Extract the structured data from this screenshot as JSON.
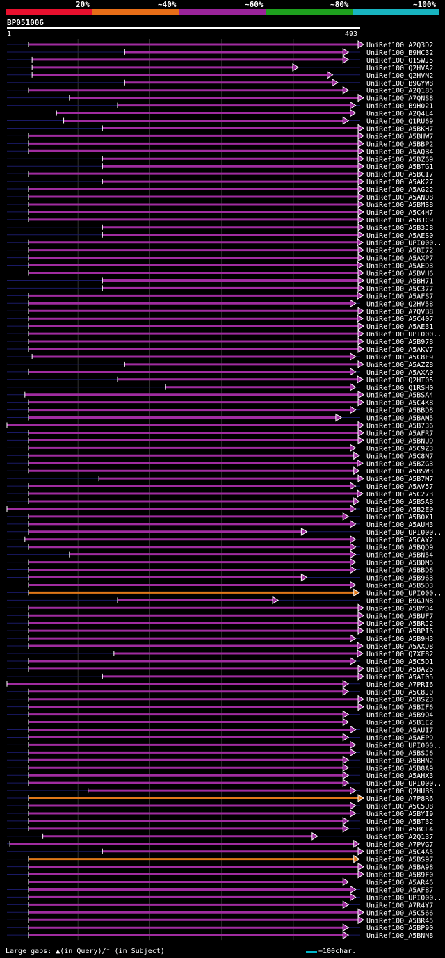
{
  "legend": {
    "labels": [
      "20%",
      "~40%",
      "~60%",
      "~80%",
      "~100%"
    ],
    "colors": [
      "#e8102e",
      "#e86e18",
      "#9b249b",
      "#1ea01e",
      "#18b4c0"
    ]
  },
  "query": {
    "name": "BP051006",
    "start": "1",
    "end": "493"
  },
  "footer": {
    "gaps_text": "Large gaps: ▲(in Query)/⁻ (in Subject)",
    "scale_text": "=100char."
  },
  "chart_data": {
    "type": "alignment",
    "query_length": 493,
    "hits": [
      {
        "name": "UniRef100_A2Q3D2",
        "start": 31,
        "end": 493,
        "color": "purple"
      },
      {
        "name": "UniRef100_B9HC32",
        "start": 165,
        "end": 470,
        "color": "purple"
      },
      {
        "name": "UniRef100_Q1SWJ5",
        "start": 36,
        "end": 470,
        "color": "purple"
      },
      {
        "name": "UniRef100_Q2HVA2",
        "start": 36,
        "end": 400,
        "color": "purple"
      },
      {
        "name": "UniRef100_Q2HVN2",
        "start": 36,
        "end": 448,
        "color": "purple"
      },
      {
        "name": "UniRef100_B9GYW8",
        "start": 165,
        "end": 455,
        "color": "purple"
      },
      {
        "name": "UniRef100_A2Q185",
        "start": 31,
        "end": 470,
        "color": "purple"
      },
      {
        "name": "UniRef100_A7QNS8",
        "start": 88,
        "end": 505,
        "color": "purple"
      },
      {
        "name": "UniRef100_B9H021",
        "start": 155,
        "end": 480,
        "color": "purple"
      },
      {
        "name": "UniRef100_A2Q4L4",
        "start": 70,
        "end": 480,
        "color": "purple"
      },
      {
        "name": "UniRef100_Q1RU69",
        "start": 80,
        "end": 470,
        "color": "purple"
      },
      {
        "name": "UniRef100_A5BKH7",
        "start": 134,
        "end": 503,
        "color": "purple"
      },
      {
        "name": "UniRef100_A5BHW7",
        "start": 31,
        "end": 503,
        "color": "purple"
      },
      {
        "name": "UniRef100_A5BBP2",
        "start": 31,
        "end": 503,
        "color": "purple"
      },
      {
        "name": "UniRef100_A5AQB4",
        "start": 31,
        "end": 503,
        "color": "purple"
      },
      {
        "name": "UniRef100_A5BZ69",
        "start": 134,
        "end": 503,
        "color": "purple"
      },
      {
        "name": "UniRef100_A5BTG1",
        "start": 134,
        "end": 503,
        "color": "purple"
      },
      {
        "name": "UniRef100_A5BCI7",
        "start": 31,
        "end": 503,
        "color": "purple"
      },
      {
        "name": "UniRef100_A5AK27",
        "start": 134,
        "end": 503,
        "color": "purple"
      },
      {
        "name": "UniRef100_A5AG22",
        "start": 31,
        "end": 503,
        "color": "purple"
      },
      {
        "name": "UniRef100_A5ANQ8",
        "start": 31,
        "end": 503,
        "color": "purple"
      },
      {
        "name": "UniRef100_A5BMS8",
        "start": 31,
        "end": 503,
        "color": "purple"
      },
      {
        "name": "UniRef100_A5C4H7",
        "start": 31,
        "end": 503,
        "color": "purple"
      },
      {
        "name": "UniRef100_A5BJC9",
        "start": 31,
        "end": 503,
        "color": "purple"
      },
      {
        "name": "UniRef100_A5B3J8",
        "start": 134,
        "end": 503,
        "color": "purple"
      },
      {
        "name": "UniRef100_A5AES0",
        "start": 134,
        "end": 503,
        "color": "purple"
      },
      {
        "name": "UniRef100_UPI000..",
        "start": 31,
        "end": 490,
        "color": "purple"
      },
      {
        "name": "UniRef100_A5BI72",
        "start": 31,
        "end": 503,
        "color": "purple"
      },
      {
        "name": "UniRef100_A5AXP7",
        "start": 31,
        "end": 503,
        "color": "purple"
      },
      {
        "name": "UniRef100_A5AED3",
        "start": 31,
        "end": 490,
        "color": "purple"
      },
      {
        "name": "UniRef100_A5BVH6",
        "start": 31,
        "end": 495,
        "color": "purple"
      },
      {
        "name": "UniRef100_A5BH71",
        "start": 134,
        "end": 503,
        "color": "purple"
      },
      {
        "name": "UniRef100_A5C377",
        "start": 134,
        "end": 503,
        "color": "purple"
      },
      {
        "name": "UniRef100_A5AFS7",
        "start": 31,
        "end": 490,
        "color": "purple"
      },
      {
        "name": "UniRef100_Q2HV58",
        "start": 31,
        "end": 480,
        "color": "purple"
      },
      {
        "name": "UniRef100_A7QVB8",
        "start": 31,
        "end": 503,
        "color": "purple"
      },
      {
        "name": "UniRef100_A5C407",
        "start": 31,
        "end": 490,
        "color": "purple"
      },
      {
        "name": "UniRef100_A5AE31",
        "start": 31,
        "end": 503,
        "color": "purple"
      },
      {
        "name": "UniRef100_UPI000..",
        "start": 31,
        "end": 503,
        "color": "purple"
      },
      {
        "name": "UniRef100_A5B978",
        "start": 31,
        "end": 495,
        "color": "purple"
      },
      {
        "name": "UniRef100_A5AKV7",
        "start": 31,
        "end": 495,
        "color": "purple"
      },
      {
        "name": "UniRef100_A5C8F9",
        "start": 36,
        "end": 480,
        "color": "purple"
      },
      {
        "name": "UniRef100_A5AZZ8",
        "start": 165,
        "end": 503,
        "color": "purple"
      },
      {
        "name": "UniRef100_A5AXA0",
        "start": 31,
        "end": 480,
        "color": "purple"
      },
      {
        "name": "UniRef100_Q2HT05",
        "start": 155,
        "end": 490,
        "color": "purple"
      },
      {
        "name": "UniRef100_Q1RSH0",
        "start": 222,
        "end": 480,
        "color": "purple"
      },
      {
        "name": "UniRef100_A5BSA4",
        "start": 26,
        "end": 495,
        "color": "purple"
      },
      {
        "name": "UniRef100_A5C4K8",
        "start": 31,
        "end": 503,
        "color": "purple"
      },
      {
        "name": "UniRef100_A5BBD8",
        "start": 31,
        "end": 480,
        "color": "purple"
      },
      {
        "name": "UniRef100_A5BAM5",
        "start": 31,
        "end": 460,
        "color": "purple"
      },
      {
        "name": "UniRef100_A5B736",
        "start": 1,
        "end": 495,
        "color": "purple"
      },
      {
        "name": "UniRef100_A5AFR7",
        "start": 31,
        "end": 495,
        "color": "purple"
      },
      {
        "name": "UniRef100_A5BNU9",
        "start": 31,
        "end": 495,
        "color": "purple"
      },
      {
        "name": "UniRef100_A5C9Z3",
        "start": 31,
        "end": 480,
        "color": "purple"
      },
      {
        "name": "UniRef100_A5C8N7",
        "start": 31,
        "end": 485,
        "color": "purple"
      },
      {
        "name": "UniRef100_A5BZG3",
        "start": 31,
        "end": 490,
        "color": "purple"
      },
      {
        "name": "UniRef100_A5BSW3",
        "start": 31,
        "end": 485,
        "color": "purple"
      },
      {
        "name": "UniRef100_A5B7M7",
        "start": 129,
        "end": 503,
        "color": "purple"
      },
      {
        "name": "UniRef100_A5AV57",
        "start": 31,
        "end": 480,
        "color": "purple"
      },
      {
        "name": "UniRef100_A5C273",
        "start": 31,
        "end": 490,
        "color": "purple"
      },
      {
        "name": "UniRef100_A5B5A8",
        "start": 31,
        "end": 485,
        "color": "purple"
      },
      {
        "name": "UniRef100_A5B2E0",
        "start": 1,
        "end": 480,
        "color": "purple"
      },
      {
        "name": "UniRef100_A5B0X1",
        "start": 31,
        "end": 470,
        "color": "purple"
      },
      {
        "name": "UniRef100_A5AUH3",
        "start": 31,
        "end": 480,
        "color": "purple"
      },
      {
        "name": "UniRef100_UPI000..",
        "start": 31,
        "end": 412,
        "color": "purple"
      },
      {
        "name": "UniRef100_A5CAY2",
        "start": 26,
        "end": 480,
        "color": "purple"
      },
      {
        "name": "UniRef100_A5BQD9",
        "start": 31,
        "end": 480,
        "color": "purple"
      },
      {
        "name": "UniRef100_A5BN54",
        "start": 88,
        "end": 480,
        "color": "purple"
      },
      {
        "name": "UniRef100_A5BDM5",
        "start": 31,
        "end": 480,
        "color": "purple"
      },
      {
        "name": "UniRef100_A5BBD6",
        "start": 31,
        "end": 480,
        "color": "purple"
      },
      {
        "name": "UniRef100_A5B963",
        "start": 31,
        "end": 412,
        "color": "purple"
      },
      {
        "name": "UniRef100_A5B5D3",
        "start": 31,
        "end": 480,
        "color": "purple"
      },
      {
        "name": "UniRef100_UPI000..",
        "start": 31,
        "end": 485,
        "color": "orange"
      },
      {
        "name": "UniRef100_B9GJN8",
        "start": 155,
        "end": 372,
        "color": "purple"
      },
      {
        "name": "UniRef100_A5BYD4",
        "start": 31,
        "end": 495,
        "color": "purple"
      },
      {
        "name": "UniRef100_A5BUF7",
        "start": 31,
        "end": 495,
        "color": "purple"
      },
      {
        "name": "UniRef100_A5BRJ2",
        "start": 31,
        "end": 503,
        "color": "purple"
      },
      {
        "name": "UniRef100_A5BPI6",
        "start": 31,
        "end": 503,
        "color": "purple"
      },
      {
        "name": "UniRef100_A5B9H3",
        "start": 31,
        "end": 480,
        "color": "purple"
      },
      {
        "name": "UniRef100_A5AXD8",
        "start": 31,
        "end": 490,
        "color": "purple"
      },
      {
        "name": "UniRef100_Q7XF82",
        "start": 150,
        "end": 490,
        "color": "purple"
      },
      {
        "name": "UniRef100_A5C5D1",
        "start": 31,
        "end": 480,
        "color": "purple"
      },
      {
        "name": "UniRef100_A5BA26",
        "start": 31,
        "end": 495,
        "color": "purple"
      },
      {
        "name": "UniRef100_A5AI05",
        "start": 134,
        "end": 503,
        "color": "purple"
      },
      {
        "name": "UniRef100_A7PRI6",
        "start": 1,
        "end": 470,
        "color": "purple"
      },
      {
        "name": "UniRef100_A5C8J0",
        "start": 31,
        "end": 470,
        "color": "purple"
      },
      {
        "name": "UniRef100_A5BSZ3",
        "start": 31,
        "end": 503,
        "color": "purple"
      },
      {
        "name": "UniRef100_A5BIF6",
        "start": 31,
        "end": 495,
        "color": "purple"
      },
      {
        "name": "UniRef100_A5B9Q4",
        "start": 31,
        "end": 470,
        "color": "purple"
      },
      {
        "name": "UniRef100_A5B1E2",
        "start": 31,
        "end": 470,
        "color": "purple"
      },
      {
        "name": "UniRef100_A5AUI7",
        "start": 31,
        "end": 480,
        "color": "purple"
      },
      {
        "name": "UniRef100_A5AEP9",
        "start": 31,
        "end": 470,
        "color": "purple"
      },
      {
        "name": "UniRef100_UPI000..",
        "start": 31,
        "end": 480,
        "color": "purple"
      },
      {
        "name": "UniRef100_A5BSJ6",
        "start": 31,
        "end": 480,
        "color": "purple"
      },
      {
        "name": "UniRef100_A5BHN2",
        "start": 31,
        "end": 470,
        "color": "purple"
      },
      {
        "name": "UniRef100_A5B8A9",
        "start": 31,
        "end": 470,
        "color": "purple"
      },
      {
        "name": "UniRef100_A5AHX3",
        "start": 31,
        "end": 470,
        "color": "purple"
      },
      {
        "name": "UniRef100_UPI000..",
        "start": 31,
        "end": 470,
        "color": "purple"
      },
      {
        "name": "UniRef100_Q2HUB8",
        "start": 114,
        "end": 480,
        "color": "purple"
      },
      {
        "name": "UniRef100_A7P8R6",
        "start": 31,
        "end": 500,
        "color": "orange"
      },
      {
        "name": "UniRef100_A5C5U8",
        "start": 31,
        "end": 480,
        "color": "purple"
      },
      {
        "name": "UniRef100_A5BYI9",
        "start": 31,
        "end": 480,
        "color": "purple"
      },
      {
        "name": "UniRef100_A5BT32",
        "start": 31,
        "end": 470,
        "color": "purple"
      },
      {
        "name": "UniRef100_A5BCL4",
        "start": 31,
        "end": 470,
        "color": "purple"
      },
      {
        "name": "UniRef100_A2Q137",
        "start": 51,
        "end": 427,
        "color": "purple"
      },
      {
        "name": "UniRef100_A7PVG7",
        "start": 5,
        "end": 485,
        "color": "purple"
      },
      {
        "name": "UniRef100_A5C4A5",
        "start": 134,
        "end": 503,
        "color": "purple"
      },
      {
        "name": "UniRef100_A5BS97",
        "start": 31,
        "end": 485,
        "color": "orange"
      },
      {
        "name": "UniRef100_A5BA98",
        "start": 31,
        "end": 495,
        "color": "purple"
      },
      {
        "name": "UniRef100_A5B9F0",
        "start": 31,
        "end": 503,
        "color": "purple"
      },
      {
        "name": "UniRef100_A5AR46",
        "start": 31,
        "end": 470,
        "color": "purple"
      },
      {
        "name": "UniRef100_A5AF87",
        "start": 31,
        "end": 480,
        "color": "purple"
      },
      {
        "name": "UniRef100_UPI000..",
        "start": 31,
        "end": 480,
        "color": "purple"
      },
      {
        "name": "UniRef100_A7R4Y7",
        "start": 31,
        "end": 470,
        "color": "purple"
      },
      {
        "name": "UniRef100_A5C566",
        "start": 31,
        "end": 495,
        "color": "purple"
      },
      {
        "name": "UniRef100_A5BR45",
        "start": 31,
        "end": 503,
        "color": "purple"
      },
      {
        "name": "UniRef100_A5BP90",
        "start": 31,
        "end": 470,
        "color": "purple"
      },
      {
        "name": "UniRef100_A5BNN8",
        "start": 31,
        "end": 470,
        "color": "purple"
      }
    ]
  }
}
